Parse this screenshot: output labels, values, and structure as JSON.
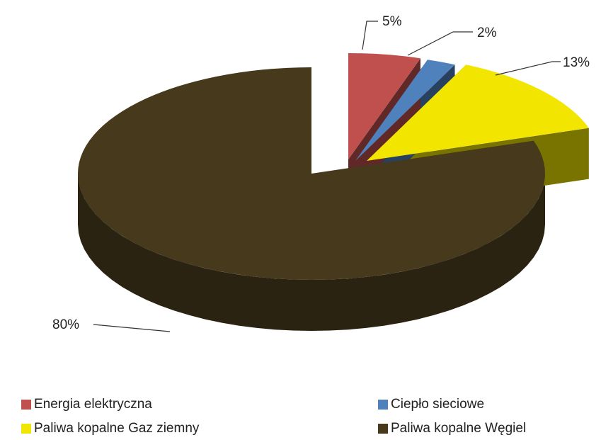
{
  "chart_data": {
    "type": "pie",
    "title": "",
    "categories": [
      "Energia elektryczna",
      "Ciepło sieciowe",
      "Paliwa kopalne Gaz ziemny",
      "Paliwa kopalne Węgiel"
    ],
    "values": [
      5,
      2,
      13,
      80
    ],
    "value_labels": [
      "5%",
      "2%",
      "13%",
      "80%"
    ],
    "colors": [
      "#c0504d",
      "#4f81bd",
      "#f2e600",
      "#46391c"
    ],
    "style": "3d-exploded",
    "legend_position": "bottom"
  }
}
